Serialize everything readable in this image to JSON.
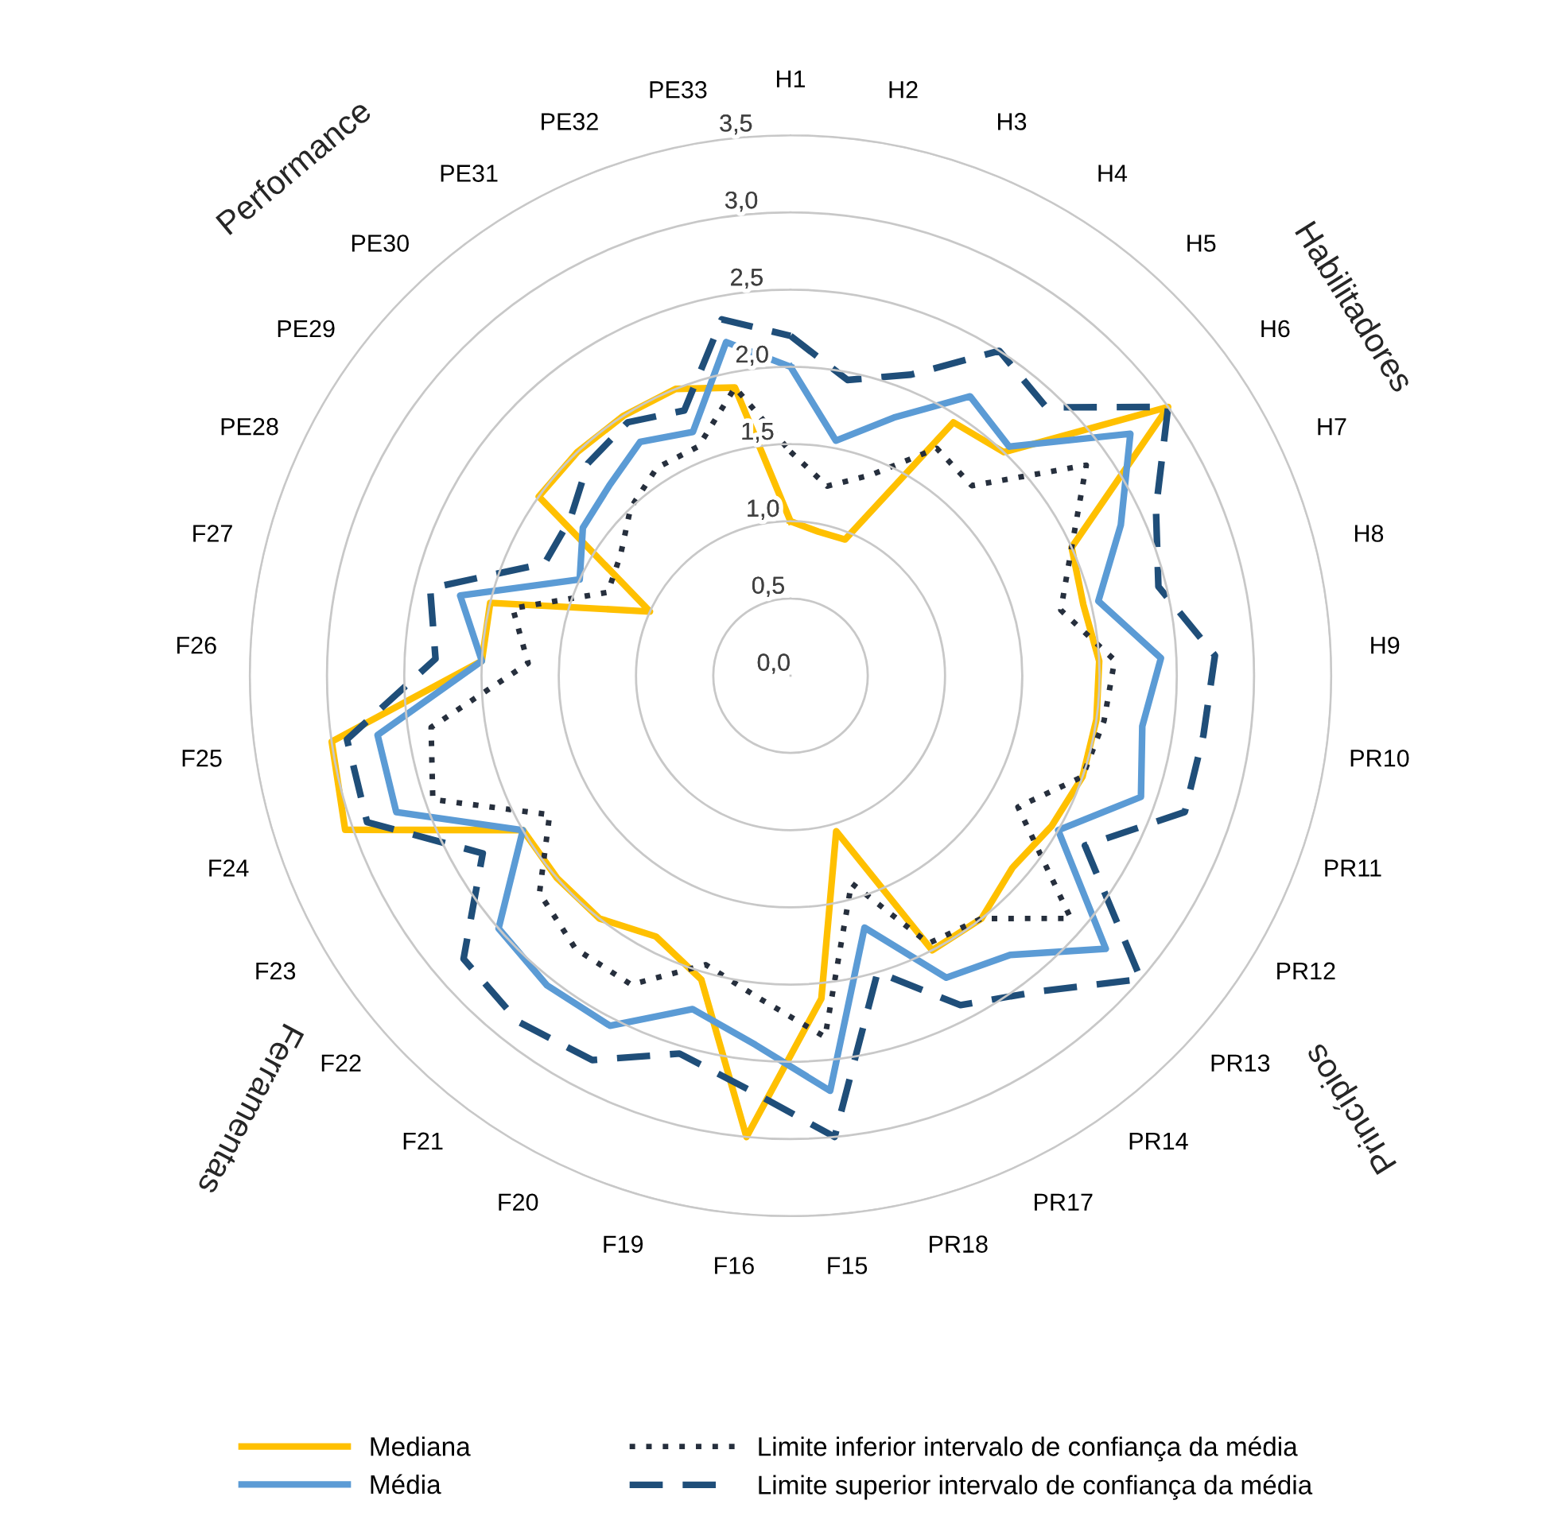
{
  "chart_data": {
    "type": "radar",
    "categories": [
      "H1",
      "H2",
      "H3",
      "H4",
      "H5",
      "H6",
      "H7",
      "H8",
      "H9",
      "PR10",
      "PR11",
      "PR12",
      "PR13",
      "PR14",
      "PR17",
      "PR18",
      "F15",
      "F16",
      "F19",
      "F20",
      "F21",
      "F22",
      "F23",
      "F24",
      "F25",
      "F26",
      "F27",
      "PE28",
      "PE29",
      "PE30",
      "PE31",
      "PE32",
      "PE33"
    ],
    "ylim": [
      0,
      3.5
    ],
    "yticks": [
      {
        "value": 0,
        "label": "0,0"
      },
      {
        "value": 0.5,
        "label": "0,5"
      },
      {
        "value": 1,
        "label": "1,0"
      },
      {
        "value": 1.5,
        "label": "1,5"
      },
      {
        "value": 2,
        "label": "2,0"
      },
      {
        "value": 2.5,
        "label": "2,5"
      },
      {
        "value": 3,
        "label": "3,0"
      },
      {
        "value": 3.5,
        "label": "3,5"
      }
    ],
    "grid": "y",
    "legend": "bottom",
    "series": [
      {
        "name": "Mediana",
        "color": "#ffc000",
        "line_style": "solid",
        "values": [
          1.0,
          0.95,
          0.95,
          1.95,
          2.0,
          3.0,
          2.0,
          1.95,
          2.0,
          2.0,
          2.0,
          1.95,
          1.9,
          2.0,
          2.0,
          1.05,
          2.1,
          3.0,
          2.05,
          1.9,
          2.0,
          2.0,
          2.0,
          3.05,
          3.0,
          2.0,
          2.0,
          1.0,
          2.0,
          2.0,
          2.0,
          2.0,
          1.9
        ]
      },
      {
        "name": "Média",
        "color": "#5b9bd5",
        "line_style": "solid",
        "values": [
          2.0,
          1.55,
          1.8,
          2.15,
          2.05,
          2.7,
          2.35,
          2.05,
          2.4,
          2.3,
          2.4,
          2.0,
          2.7,
          2.3,
          2.2,
          1.7,
          2.7,
          2.4,
          2.25,
          2.55,
          2.55,
          2.5,
          2.0,
          2.7,
          2.7,
          2.0,
          2.2,
          1.5,
          1.65,
          1.7,
          1.8,
          1.7,
          2.2
        ]
      },
      {
        "name": "Limite inferior intervalo de confiança da média",
        "color": "#262f3d",
        "line_style": "dotted",
        "values": [
          1.45,
          1.25,
          1.4,
          1.75,
          1.7,
          2.35,
          2.0,
          1.8,
          2.1,
          2.05,
          2.0,
          1.7,
          2.4,
          2.0,
          1.95,
          1.4,
          2.35,
          2.1,
          1.95,
          2.25,
          2.25,
          2.15,
          1.8,
          2.45,
          2.35,
          1.7,
          1.85,
          1.3,
          1.35,
          1.5,
          1.6,
          1.6,
          1.9
        ]
      },
      {
        "name": "Limite superior intervalo de confiança da média",
        "color": "#1f4e79",
        "line_style": "dashed",
        "values": [
          2.2,
          1.95,
          2.1,
          2.5,
          2.4,
          3.0,
          2.6,
          2.45,
          2.75,
          2.7,
          2.7,
          2.2,
          3.0,
          2.6,
          2.4,
          2.0,
          3.0,
          2.7,
          2.55,
          2.8,
          2.85,
          2.8,
          2.3,
          2.9,
          2.9,
          2.3,
          2.4,
          1.75,
          1.75,
          1.9,
          1.95,
          1.85,
          2.35
        ]
      }
    ],
    "annotations": [
      "Habilitadores",
      "Princípios",
      "Ferramentas",
      "Performance"
    ]
  }
}
